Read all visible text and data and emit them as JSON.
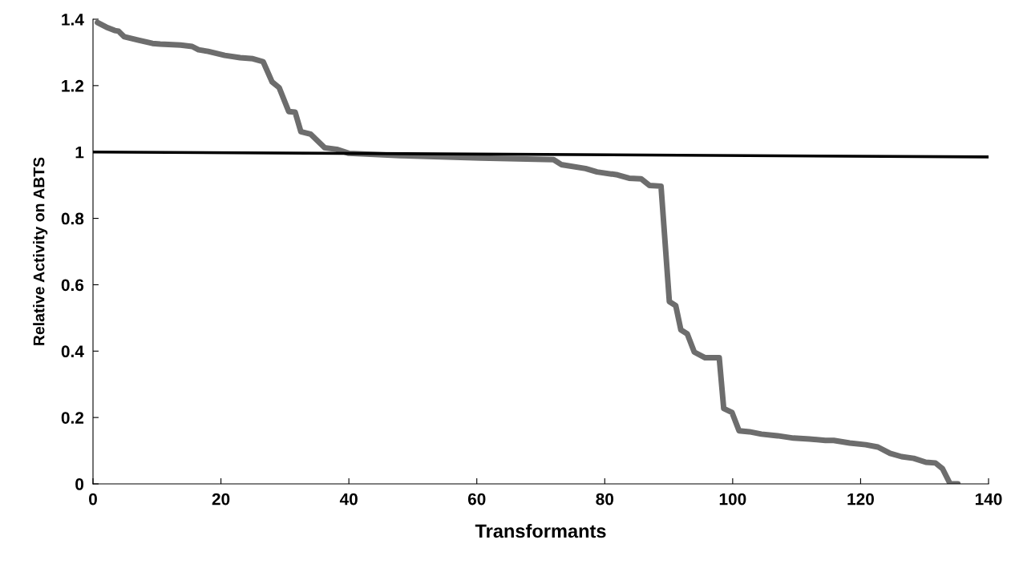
{
  "chart_data": {
    "type": "line",
    "xlabel": "Transformants",
    "ylabel": "Relative Activity on ABTS",
    "xlim": [
      0,
      140
    ],
    "xticks": [
      0,
      20,
      40,
      60,
      80,
      100,
      120,
      140
    ],
    "ylim": [
      0,
      1.4
    ],
    "yticks": [
      0,
      0.2,
      0.4,
      0.6,
      0.8,
      1,
      1.2,
      1.4
    ],
    "grid": false,
    "legend": false,
    "marker": "none",
    "line_style": "solid",
    "series": [
      {
        "color": "#6d6d6d",
        "x": [
          0.7,
          2.1,
          3.4,
          4,
          4.9,
          7.1,
          9.3,
          10.5,
          13.7,
          15.5,
          16.5,
          18,
          20.6,
          23,
          25,
          26.6,
          28,
          29.1,
          30.6,
          31.6,
          32.5,
          34,
          36.2,
          38.1,
          40,
          48,
          60.6,
          72,
          73.2,
          77,
          78.8,
          82,
          83.8,
          85.7,
          87,
          88.8,
          90.1,
          91.1,
          91.9,
          92.9,
          94,
          95.7,
          97.9,
          98.6,
          99.9,
          101,
          102.6,
          104.5,
          107,
          109.5,
          112,
          114.5,
          115.8,
          118.3,
          120.8,
          122.7,
          124.6,
          126.4,
          128.3,
          130.2,
          131.7,
          132.8,
          134,
          135.2
        ],
        "values": [
          1.39,
          1.376,
          1.366,
          1.364,
          1.347,
          1.337,
          1.327,
          1.325,
          1.322,
          1.318,
          1.308,
          1.303,
          1.291,
          1.284,
          1.281,
          1.272,
          1.211,
          1.194,
          1.122,
          1.12,
          1.061,
          1.054,
          1.013,
          1.008,
          0.996,
          0.989,
          0.982,
          0.977,
          0.962,
          0.95,
          0.94,
          0.931,
          0.921,
          0.919,
          0.899,
          0.897,
          0.549,
          0.537,
          0.464,
          0.452,
          0.397,
          0.38,
          0.38,
          0.227,
          0.215,
          0.16,
          0.157,
          0.15,
          0.145,
          0.138,
          0.135,
          0.131,
          0.131,
          0.123,
          0.118,
          0.111,
          0.092,
          0.082,
          0.077,
          0.065,
          0.063,
          0.046,
          0,
          0
        ]
      },
      {
        "color": "#000000",
        "x": [
          0,
          140
        ],
        "values": [
          1.0,
          0.985
        ]
      }
    ]
  }
}
